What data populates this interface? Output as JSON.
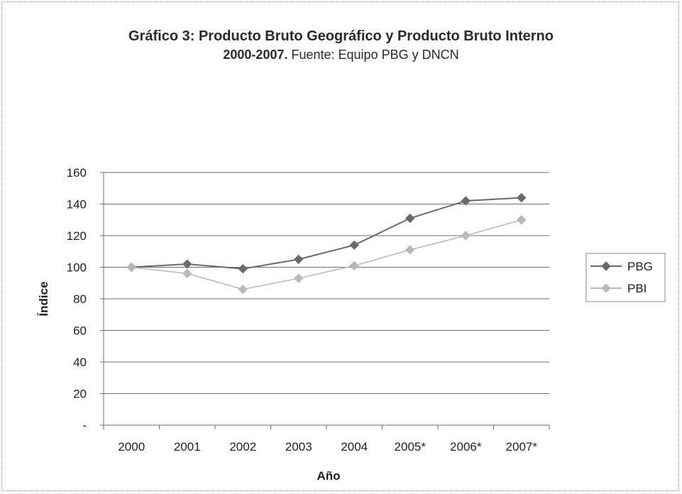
{
  "chart_data": {
    "type": "line",
    "title": "Gráfico 3: Producto Bruto Geográfico y Producto Bruto Interno",
    "subtitle_bold": "2000-2007.",
    "subtitle": " Fuente: Equipo PBG y DNCN",
    "xlabel": "Año",
    "ylabel": "Índice",
    "categories": [
      "2000",
      "2001",
      "2002",
      "2003",
      "2004",
      "2005*",
      "2006*",
      "2007*"
    ],
    "ylim": [
      0,
      160
    ],
    "yticks": [
      0,
      20,
      40,
      60,
      80,
      100,
      120,
      140,
      160
    ],
    "ytick_labels": [
      "-",
      "20",
      "40",
      "60",
      "80",
      "100",
      "120",
      "140",
      "160"
    ],
    "grid": true,
    "legend_position": "right",
    "series": [
      {
        "name": "PBG",
        "values": [
          100,
          102,
          99,
          105,
          114,
          131,
          142,
          144
        ],
        "color": "#6a6a6a"
      },
      {
        "name": "PBI",
        "values": [
          100,
          96,
          86,
          93,
          101,
          111,
          120,
          130
        ],
        "color": "#b8b8b8"
      }
    ]
  }
}
